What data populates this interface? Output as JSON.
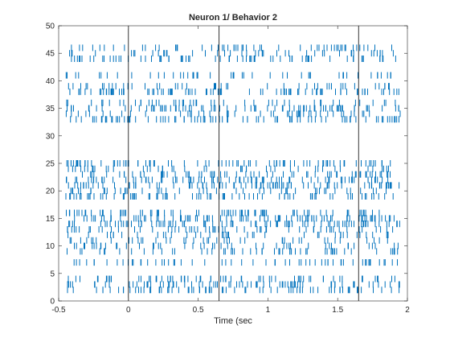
{
  "chart_data": {
    "type": "raster",
    "title": "Neuron 1/ Behavior 2",
    "xlabel": "Time (sec",
    "ylabel": "",
    "xlim": [
      -0.5,
      2
    ],
    "ylim": [
      0,
      50
    ],
    "xticks": [
      -0.5,
      0,
      0.5,
      1,
      1.5,
      2
    ],
    "xtick_labels": [
      "-0.5",
      "0",
      "0.5",
      "1",
      "1.5",
      "2"
    ],
    "yticks": [
      0,
      5,
      10,
      15,
      20,
      25,
      30,
      35,
      40,
      45,
      50
    ],
    "ytick_labels": [
      "0",
      "5",
      "10",
      "15",
      "20",
      "25",
      "30",
      "35",
      "40",
      "45",
      "50"
    ],
    "event_lines_x": [
      0,
      0.65,
      1.65
    ],
    "trials": [
      2,
      3,
      4,
      7,
      9,
      10,
      11,
      12,
      13,
      14,
      15,
      16,
      19,
      20,
      21,
      22,
      23,
      24,
      25,
      33,
      34,
      35,
      36,
      38,
      39,
      41,
      44,
      45,
      46
    ],
    "spike_window": [
      -0.45,
      1.95
    ],
    "spike_color": "#0072bd",
    "event_line_color": "#000000",
    "grid": false
  }
}
